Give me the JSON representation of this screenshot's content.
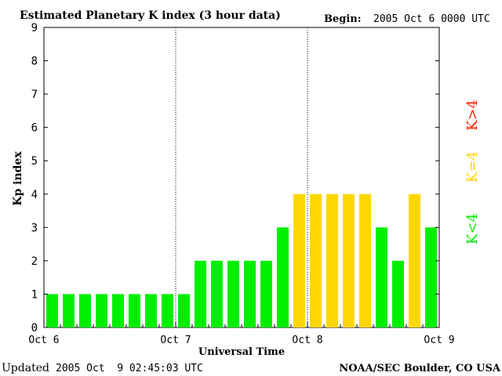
{
  "header": {
    "title": "Estimated Planetary K index (3 hour data)",
    "begin_label": "Begin:",
    "begin_value": "2005 Oct 6 0000 UTC"
  },
  "footer": {
    "updated_label": "Updated",
    "updated_value": "2005 Oct  9 02:45:03 UTC",
    "source": "NOAA/SEC Boulder, CO USA"
  },
  "legend": {
    "items": [
      {
        "label": "K<4",
        "color": "#00ee00"
      },
      {
        "label": "K=4",
        "color": "#ffd700"
      },
      {
        "label": "K>4",
        "color": "#ff2200"
      }
    ]
  },
  "colors": {
    "low": "#00ee00",
    "equal": "#ffd700",
    "high": "#ff2200"
  },
  "chart_data": {
    "type": "bar",
    "title": "Estimated Planetary K index (3 hour data)",
    "xlabel": "Universal Time",
    "ylabel": "Kp index",
    "ylim": [
      0,
      9
    ],
    "yticks": [
      0,
      1,
      2,
      3,
      4,
      5,
      6,
      7,
      8,
      9
    ],
    "xticks": [
      "Oct 6",
      "Oct 7",
      "Oct 8",
      "Oct 9"
    ],
    "day_separators": [
      "Oct 7",
      "Oct 8"
    ],
    "interval_hours": 3,
    "values": [
      1,
      1,
      1,
      1,
      1,
      1,
      1,
      1,
      1,
      2,
      2,
      2,
      2,
      2,
      3,
      4,
      4,
      4,
      4,
      4,
      3,
      2,
      4,
      3
    ]
  }
}
